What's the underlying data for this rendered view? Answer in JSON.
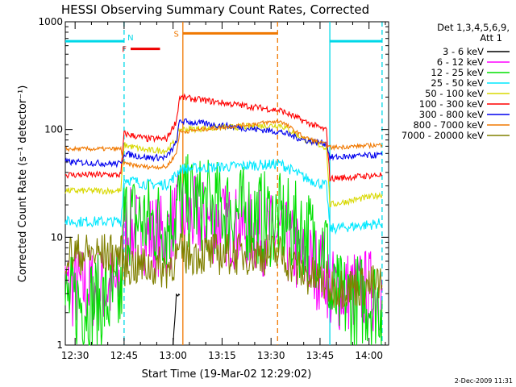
{
  "footer_date": "2-Dec-2009 11:31",
  "chart_data": {
    "type": "line",
    "title": "HESSI Observing Summary Count Rates, Corrected",
    "xlabel": "Start Time (19-Mar-02 12:29:02)",
    "ylabel": "Corrected Count Rate (s⁻¹ detector⁻¹)",
    "y_scale": "log",
    "ylim": [
      1,
      1000
    ],
    "xlim": [
      "12:27",
      "14:06"
    ],
    "y_ticks": [
      {
        "value": 1,
        "label": "1"
      },
      {
        "value": 10,
        "label": "10"
      },
      {
        "value": 100,
        "label": "100"
      },
      {
        "value": 1000,
        "label": "1000"
      }
    ],
    "x_ticks": [
      {
        "value": "12:30",
        "label": "12:30"
      },
      {
        "value": "12:45",
        "label": "12:45"
      },
      {
        "value": "13:00",
        "label": "13:00"
      },
      {
        "value": "13:15",
        "label": "13:15"
      },
      {
        "value": "13:30",
        "label": "13:30"
      },
      {
        "value": "13:45",
        "label": "13:45"
      },
      {
        "value": "14:00",
        "label": "14:00"
      }
    ],
    "legend": {
      "title_line1": "Det 1,3,4,5,6,9,",
      "title_line2": "Att 1",
      "placement": "right"
    },
    "flags": [
      {
        "label": "N",
        "color": "#00d8e8",
        "x": "12:45"
      },
      {
        "label": "F",
        "color": "#ee0000",
        "x_start": "12:47",
        "x_end": "12:56",
        "y": 560
      },
      {
        "label": "S",
        "color": "#f07800",
        "x_start": "13:03",
        "x_end": "13:32",
        "y": 780
      }
    ],
    "marker_lines": [
      {
        "x": "12:45",
        "color": "#00d8e8",
        "style": "dashed"
      },
      {
        "x": "13:03",
        "color": "#f07800",
        "style": "solid"
      },
      {
        "x": "13:32",
        "color": "#f07800",
        "style": "dashed"
      },
      {
        "x": "13:48",
        "color": "#00d8e8",
        "style": "solid"
      },
      {
        "x": "14:04",
        "color": "#00d8e8",
        "style": "dashed"
      }
    ],
    "cyan_top_segments": [
      {
        "x_start": "12:27",
        "x_end": "12:45",
        "y": 660
      },
      {
        "x_start": "13:48",
        "x_end": "14:04",
        "y": 660
      }
    ],
    "series": [
      {
        "name": "3 - 6 keV",
        "color": "#000000",
        "noise": 0.02,
        "points": [
          [
            "13:00",
            1.0
          ],
          [
            "13:01",
            2.9
          ],
          [
            "13:02",
            2.9
          ]
        ]
      },
      {
        "name": "6 - 12 keV",
        "color": "#ff00ff",
        "noise": 0.4,
        "points": [
          [
            "12:27",
            3.4
          ],
          [
            "12:44",
            3.4
          ],
          [
            "12:45",
            12
          ],
          [
            "12:58",
            10
          ],
          [
            "13:01",
            15
          ],
          [
            "13:02",
            16
          ],
          [
            "13:33",
            10
          ],
          [
            "13:40",
            6
          ],
          [
            "13:47",
            4.8
          ],
          [
            "13:48",
            3.2
          ],
          [
            "14:04",
            3.2
          ]
        ]
      },
      {
        "name": "12 - 25 keV",
        "color": "#00e000",
        "noise": 0.45,
        "points": [
          [
            "12:27",
            2.5
          ],
          [
            "12:44",
            2.5
          ],
          [
            "12:45",
            15
          ],
          [
            "12:58",
            13
          ],
          [
            "13:01",
            18
          ],
          [
            "13:02",
            22
          ],
          [
            "13:33",
            14
          ],
          [
            "13:40",
            11
          ],
          [
            "13:47",
            8.5
          ],
          [
            "13:48",
            2.6
          ],
          [
            "14:04",
            2.6
          ]
        ]
      },
      {
        "name": "25 - 50 keV",
        "color": "#00e8ff",
        "noise": 0.05,
        "points": [
          [
            "12:27",
            14
          ],
          [
            "12:44",
            14
          ],
          [
            "12:45",
            35
          ],
          [
            "12:52",
            31
          ],
          [
            "12:58",
            31
          ],
          [
            "13:01",
            38
          ],
          [
            "13:02",
            43
          ],
          [
            "13:33",
            48
          ],
          [
            "13:40",
            36
          ],
          [
            "13:47",
            30
          ],
          [
            "13:48",
            12
          ],
          [
            "14:04",
            13.5
          ]
        ]
      },
      {
        "name": "50 - 100 keV",
        "color": "#d8d800",
        "noise": 0.03,
        "points": [
          [
            "12:27",
            27
          ],
          [
            "12:44",
            27
          ],
          [
            "12:45",
            72
          ],
          [
            "12:52",
            64
          ],
          [
            "12:58",
            64
          ],
          [
            "13:01",
            80
          ],
          [
            "13:02",
            100
          ],
          [
            "13:33",
            110
          ],
          [
            "13:40",
            82
          ],
          [
            "13:47",
            68
          ],
          [
            "13:48",
            20
          ],
          [
            "14:04",
            25
          ]
        ]
      },
      {
        "name": "100 - 300 keV",
        "color": "#ff0000",
        "noise": 0.03,
        "points": [
          [
            "12:27",
            38
          ],
          [
            "12:44",
            38
          ],
          [
            "12:45",
            92
          ],
          [
            "12:52",
            82
          ],
          [
            "12:58",
            82
          ],
          [
            "13:01",
            120
          ],
          [
            "13:02",
            200
          ],
          [
            "13:33",
            150
          ],
          [
            "13:40",
            120
          ],
          [
            "13:47",
            98
          ],
          [
            "13:48",
            35
          ],
          [
            "14:04",
            38
          ]
        ]
      },
      {
        "name": "300 - 800 keV",
        "color": "#0000ee",
        "noise": 0.03,
        "points": [
          [
            "12:27",
            50
          ],
          [
            "12:44",
            48
          ],
          [
            "12:45",
            60
          ],
          [
            "12:52",
            55
          ],
          [
            "12:58",
            55
          ],
          [
            "13:01",
            75
          ],
          [
            "13:02",
            120
          ],
          [
            "13:33",
            95
          ],
          [
            "13:40",
            80
          ],
          [
            "13:47",
            74
          ],
          [
            "13:48",
            55
          ],
          [
            "14:04",
            58
          ]
        ]
      },
      {
        "name": "800 - 7000 keV",
        "color": "#f07800",
        "noise": 0.02,
        "points": [
          [
            "12:27",
            66
          ],
          [
            "12:44",
            66
          ],
          [
            "12:45",
            48
          ],
          [
            "12:52",
            45
          ],
          [
            "12:58",
            45
          ],
          [
            "13:01",
            60
          ],
          [
            "13:02",
            95
          ],
          [
            "13:33",
            120
          ],
          [
            "13:40",
            85
          ],
          [
            "13:47",
            72
          ],
          [
            "13:48",
            68
          ],
          [
            "14:04",
            72
          ]
        ]
      },
      {
        "name": "7000 - 20000 keV",
        "color": "#808000",
        "noise": 0.2,
        "points": [
          [
            "12:27",
            7
          ],
          [
            "12:44",
            7
          ],
          [
            "12:45",
            5.5
          ],
          [
            "12:58",
            5.2
          ],
          [
            "13:01",
            6.5
          ],
          [
            "13:02",
            7
          ],
          [
            "13:33",
            7
          ],
          [
            "13:40",
            4.5
          ],
          [
            "13:47",
            3.8
          ],
          [
            "13:48",
            3.4
          ],
          [
            "14:04",
            3.6
          ]
        ]
      }
    ]
  }
}
